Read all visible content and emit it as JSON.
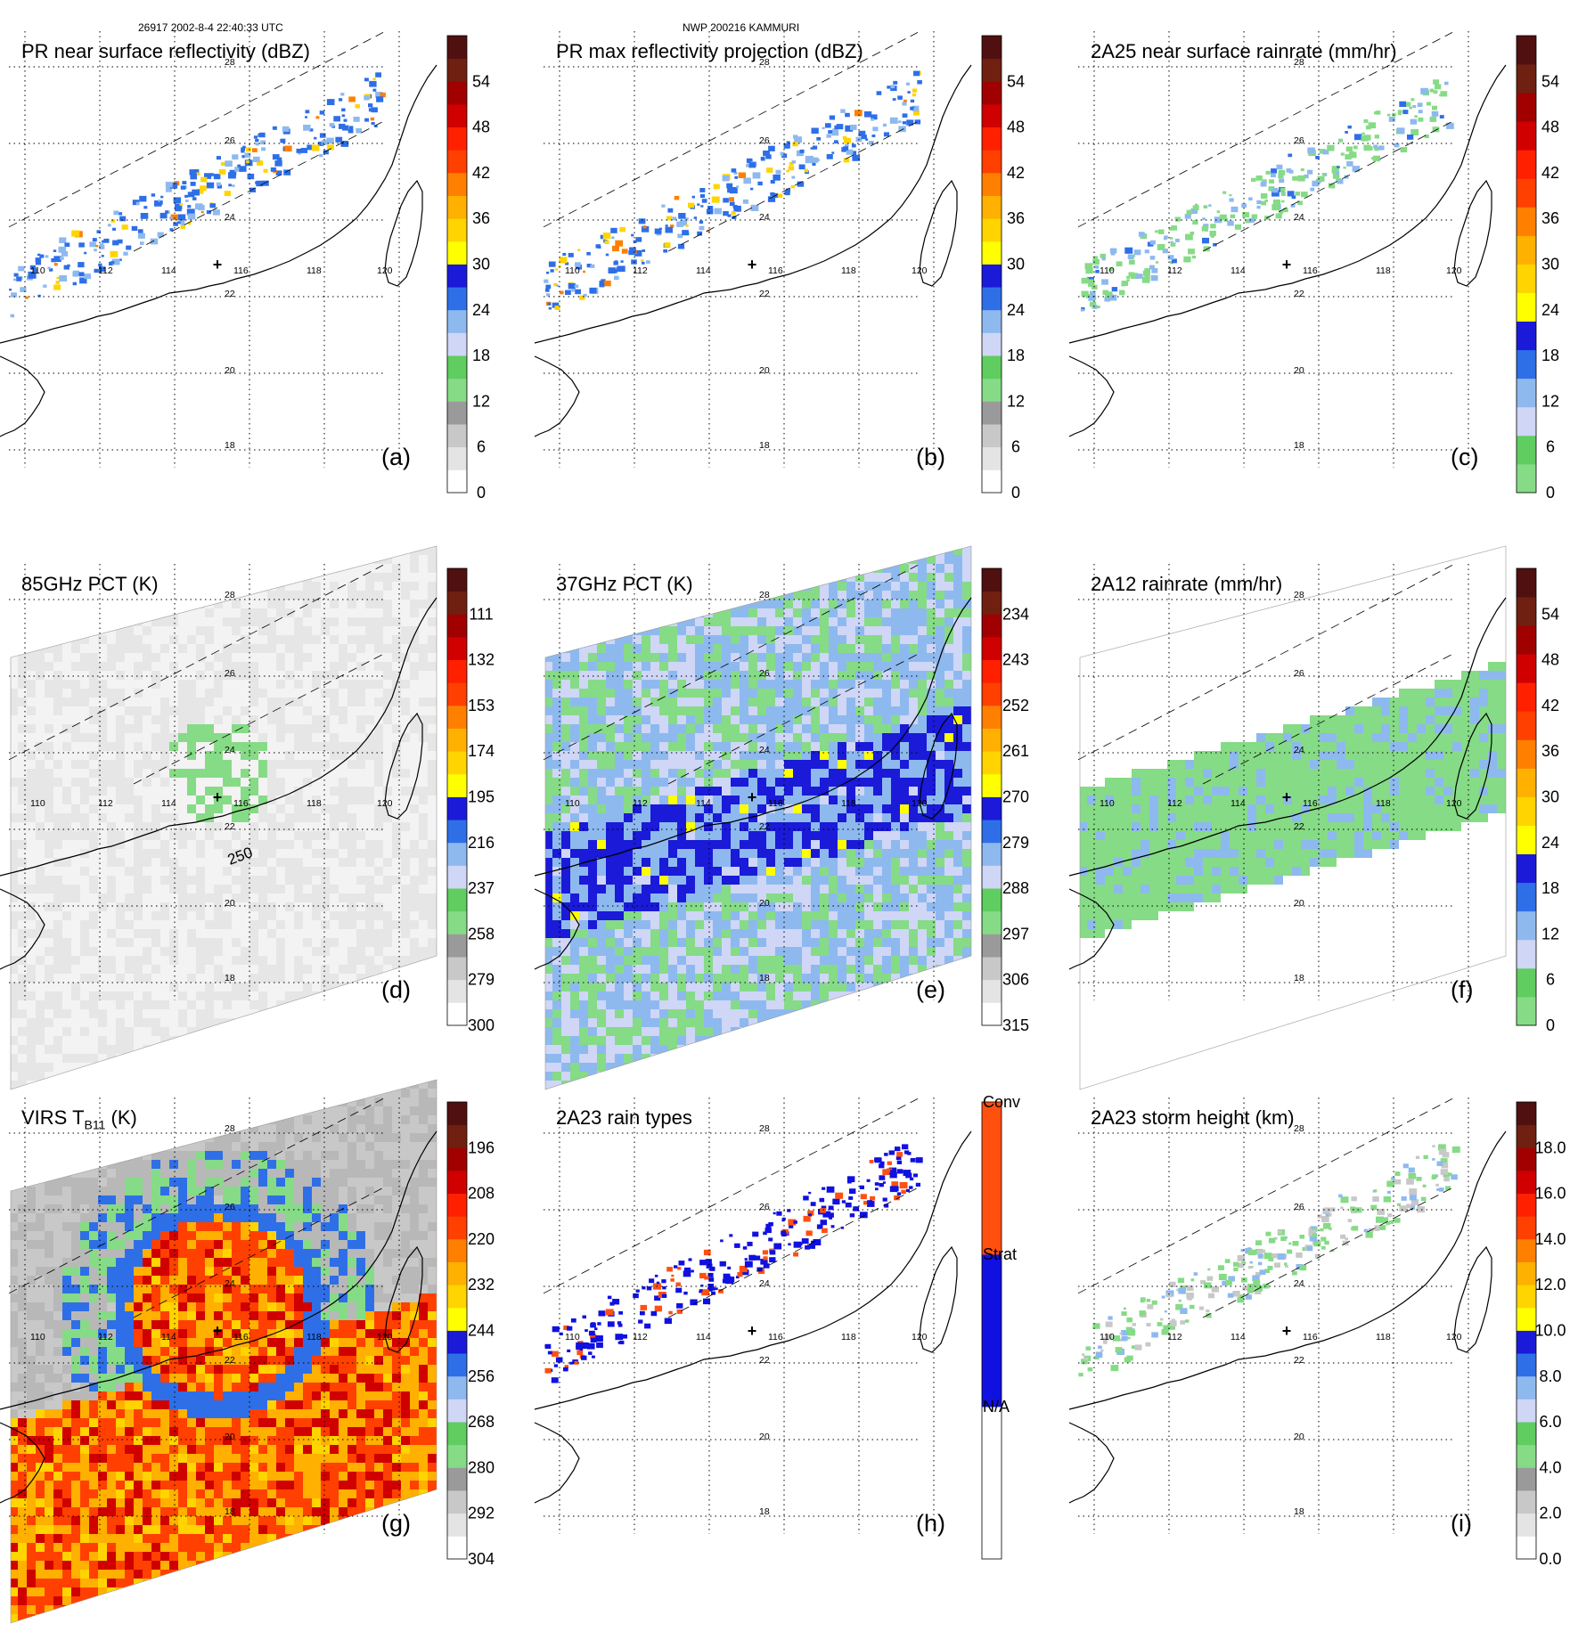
{
  "header": {
    "orbit_time": "26917 2002-8-4 22:40:33 UTC",
    "storm": "NWP 200216 KAMMURI"
  },
  "map_labels": {
    "lon": [
      "110",
      "112",
      "114",
      "116",
      "118",
      "120"
    ],
    "lat": [
      "28",
      "26",
      "24",
      "22",
      "20",
      "18"
    ]
  },
  "panels": [
    {
      "id": "a",
      "label": "(a)",
      "title": "PR near surface reflectivity (dBZ)",
      "colorbar": [
        "0",
        "6",
        "12",
        "18",
        "24",
        "30",
        "36",
        "42",
        "48",
        "54"
      ],
      "palette": [
        "#ffffff",
        "#e4e4e4",
        "#c8c8c8",
        "#9a9a9a",
        "#86db86",
        "#5fcd5f",
        "#cfd6f6",
        "#8eb9ef",
        "#2e6fe8",
        "#1a1ad8",
        "#ffff00",
        "#ffd400",
        "#ffb000",
        "#ff8000",
        "#ff4000",
        "#ff2000",
        "#d00000",
        "#a00000",
        "#702010",
        "#501010"
      ],
      "contour_label": ""
    },
    {
      "id": "b",
      "label": "(b)",
      "title": "PR max reflectivity projection (dBZ)",
      "colorbar": [
        "0",
        "6",
        "12",
        "18",
        "24",
        "30",
        "36",
        "42",
        "48",
        "54"
      ],
      "palette": [
        "#ffffff",
        "#e4e4e4",
        "#c8c8c8",
        "#9a9a9a",
        "#86db86",
        "#5fcd5f",
        "#cfd6f6",
        "#8eb9ef",
        "#2e6fe8",
        "#1a1ad8",
        "#ffff00",
        "#ffd400",
        "#ffb000",
        "#ff8000",
        "#ff4000",
        "#ff2000",
        "#d00000",
        "#a00000",
        "#702010",
        "#501010"
      ],
      "contour_label": ""
    },
    {
      "id": "c",
      "label": "(c)",
      "title": "2A25 near surface rainrate (mm/hr)",
      "colorbar": [
        "0",
        "6",
        "12",
        "18",
        "24",
        "30",
        "36",
        "42",
        "48",
        "54"
      ],
      "palette": [
        "#86db86",
        "#5fcd5f",
        "#cfd6f6",
        "#8eb9ef",
        "#2e6fe8",
        "#1a1ad8",
        "#ffff00",
        "#ffd400",
        "#ffb000",
        "#ff8000",
        "#ff4000",
        "#ff2000",
        "#d00000",
        "#a00000",
        "#702010",
        "#501010"
      ],
      "contour_label": ""
    },
    {
      "id": "d",
      "label": "(d)",
      "title": "85GHz PCT (K)",
      "colorbar": [
        "300",
        "279",
        "258",
        "237",
        "216",
        "195",
        "174",
        "153",
        "132",
        "111"
      ],
      "palette": [
        "#ffffff",
        "#e4e4e4",
        "#c8c8c8",
        "#9a9a9a",
        "#86db86",
        "#5fcd5f",
        "#cfd6f6",
        "#8eb9ef",
        "#2e6fe8",
        "#1a1ad8",
        "#ffff00",
        "#ffd400",
        "#ffb000",
        "#ff8000",
        "#ff4000",
        "#ff2000",
        "#d00000",
        "#a00000",
        "#702010",
        "#501010"
      ],
      "contour_label": "250"
    },
    {
      "id": "e",
      "label": "(e)",
      "title": "37GHz PCT (K)",
      "colorbar": [
        "315",
        "306",
        "297",
        "288",
        "279",
        "270",
        "261",
        "252",
        "243",
        "234"
      ],
      "palette": [
        "#ffffff",
        "#e4e4e4",
        "#c8c8c8",
        "#9a9a9a",
        "#86db86",
        "#5fcd5f",
        "#cfd6f6",
        "#8eb9ef",
        "#2e6fe8",
        "#1a1ad8",
        "#ffff00",
        "#ffd400",
        "#ffb000",
        "#ff8000",
        "#ff4000",
        "#ff2000",
        "#d00000",
        "#a00000",
        "#702010",
        "#501010"
      ],
      "contour_label": ""
    },
    {
      "id": "f",
      "label": "(f)",
      "title": "2A12 rainrate (mm/hr)",
      "colorbar": [
        "0",
        "6",
        "12",
        "18",
        "24",
        "30",
        "36",
        "42",
        "48",
        "54"
      ],
      "palette": [
        "#86db86",
        "#5fcd5f",
        "#cfd6f6",
        "#8eb9ef",
        "#2e6fe8",
        "#1a1ad8",
        "#ffff00",
        "#ffd400",
        "#ffb000",
        "#ff8000",
        "#ff4000",
        "#ff2000",
        "#d00000",
        "#a00000",
        "#702010",
        "#501010"
      ],
      "contour_label": ""
    },
    {
      "id": "g",
      "label": "(g)",
      "title": "VIRS T",
      "title_sub": "B11",
      "title_end": " (K)",
      "colorbar": [
        "304",
        "292",
        "280",
        "268",
        "256",
        "244",
        "232",
        "220",
        "208",
        "196"
      ],
      "palette": [
        "#ffffff",
        "#e4e4e4",
        "#c8c8c8",
        "#9a9a9a",
        "#86db86",
        "#5fcd5f",
        "#cfd6f6",
        "#8eb9ef",
        "#2e6fe8",
        "#1a1ad8",
        "#ffff00",
        "#ffd400",
        "#ffb000",
        "#ff8000",
        "#ff4000",
        "#ff2000",
        "#d00000",
        "#a00000",
        "#702010",
        "#501010"
      ],
      "contour_label": ""
    },
    {
      "id": "h",
      "label": "(h)",
      "title": "2A23 rain types",
      "colorbar": [
        "N/A",
        "Strat",
        "Conv"
      ],
      "palette": [
        "#ffffff",
        "#1010e0",
        "#ff5010"
      ],
      "contour_label": ""
    },
    {
      "id": "i",
      "label": "(i)",
      "title": "2A23 storm height (km)",
      "colorbar": [
        "0.0",
        "2.0",
        "4.0",
        "6.0",
        "8.0",
        "10.0",
        "12.0",
        "14.0",
        "16.0",
        "18.0"
      ],
      "palette": [
        "#ffffff",
        "#e4e4e4",
        "#c8c8c8",
        "#9a9a9a",
        "#86db86",
        "#5fcd5f",
        "#cfd6f6",
        "#8eb9ef",
        "#2e6fe8",
        "#1a1ad8",
        "#ffff00",
        "#ffd400",
        "#ffb000",
        "#ff8000",
        "#ff4000",
        "#ff2000",
        "#d00000",
        "#a00000",
        "#702010",
        "#501010"
      ],
      "contour_label": ""
    }
  ]
}
